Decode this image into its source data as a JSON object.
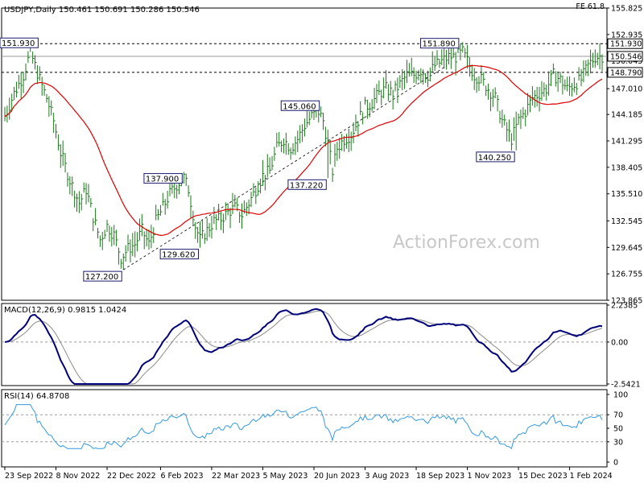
{
  "chart_data": {
    "type": "line",
    "symbol_header": "USDJPY,Daily  150.461 150.691 150.286 150.546",
    "watermark": "ActionForex.com",
    "fib_label": "FE 61.8",
    "x_labels": [
      "23 Sep 2022",
      "8 Nov 2022",
      "22 Dec 2022",
      "6 Feb 2023",
      "22 Mar 2023",
      "5 May 2023",
      "20 Jun 2023",
      "3 Aug 2023",
      "18 Sep 2023",
      "1 Nov 2023",
      "15 Dec 2023",
      "1 Feb 2024"
    ],
    "price_panel": {
      "y_ticks": [
        "155.825",
        "152.935",
        "150.045",
        "147.010",
        "144.185",
        "141.295",
        "138.405",
        "135.510",
        "132.545",
        "129.645",
        "126.755",
        "123.865"
      ],
      "ylim": [
        123.865,
        155.825
      ],
      "levels": [
        {
          "value": 151.93,
          "label": "151.930",
          "style": "dashed"
        },
        {
          "value": 148.79,
          "label": "148.790",
          "style": "dashed"
        },
        {
          "value": 150.546,
          "label": "150.546",
          "style": "solid"
        }
      ],
      "annotations": [
        {
          "label": "151.930",
          "index": 11,
          "value": 151.93,
          "side": "left"
        },
        {
          "label": "127.200",
          "index": 51,
          "value": 127.2,
          "side": "left"
        },
        {
          "label": "137.900",
          "index": 77,
          "value": 137.9,
          "side": "left"
        },
        {
          "label": "129.620",
          "index": 84,
          "value": 129.62,
          "side": "left"
        },
        {
          "label": "145.060",
          "index": 136,
          "value": 145.06,
          "side": "left"
        },
        {
          "label": "137.220",
          "index": 139,
          "value": 137.22,
          "side": "left"
        },
        {
          "label": "151.890",
          "index": 196,
          "value": 151.89,
          "side": "left"
        },
        {
          "label": "140.250",
          "index": 220,
          "value": 140.25,
          "side": "left"
        }
      ],
      "close_anchors": [
        [
          0,
          144.0
        ],
        [
          4,
          146.5
        ],
        [
          8,
          148.5
        ],
        [
          11,
          151.0
        ],
        [
          15,
          148.0
        ],
        [
          18,
          146.0
        ],
        [
          21,
          143.5
        ],
        [
          24,
          140.0
        ],
        [
          28,
          137.0
        ],
        [
          32,
          134.5
        ],
        [
          35,
          136.0
        ],
        [
          38,
          133.0
        ],
        [
          41,
          130.5
        ],
        [
          44,
          132.0
        ],
        [
          47,
          131.0
        ],
        [
          50,
          128.5
        ],
        [
          53,
          129.5
        ],
        [
          56,
          130.0
        ],
        [
          59,
          131.5
        ],
        [
          62,
          130.0
        ],
        [
          65,
          132.5
        ],
        [
          68,
          134.0
        ],
        [
          71,
          135.5
        ],
        [
          74,
          136.5
        ],
        [
          77,
          137.3
        ],
        [
          79,
          136.0
        ],
        [
          82,
          132.0
        ],
        [
          84,
          130.5
        ],
        [
          87,
          131.5
        ],
        [
          90,
          132.5
        ],
        [
          93,
          132.8
        ],
        [
          96,
          133.5
        ],
        [
          99,
          134.0
        ],
        [
          102,
          133.2
        ],
        [
          105,
          134.5
        ],
        [
          108,
          136.0
        ],
        [
          111,
          137.5
        ],
        [
          114,
          138.0
        ],
        [
          117,
          140.5
        ],
        [
          120,
          141.5
        ],
        [
          123,
          140.5
        ],
        [
          126,
          141.5
        ],
        [
          129,
          143.0
        ],
        [
          132,
          144.0
        ],
        [
          135,
          144.5
        ],
        [
          137,
          143.5
        ],
        [
          139,
          141.0
        ],
        [
          141,
          138.0
        ],
        [
          143,
          140.5
        ],
        [
          146,
          141.5
        ],
        [
          149,
          142.0
        ],
        [
          152,
          143.5
        ],
        [
          155,
          145.0
        ],
        [
          158,
          145.5
        ],
        [
          161,
          146.5
        ],
        [
          164,
          147.0
        ],
        [
          167,
          146.5
        ],
        [
          170,
          147.5
        ],
        [
          173,
          148.5
        ],
        [
          176,
          148.5
        ],
        [
          179,
          149.0
        ],
        [
          182,
          148.5
        ],
        [
          185,
          149.5
        ],
        [
          188,
          150.0
        ],
        [
          191,
          150.5
        ],
        [
          194,
          150.5
        ],
        [
          197,
          151.0
        ],
        [
          199,
          150.0
        ],
        [
          202,
          148.5
        ],
        [
          205,
          148.0
        ],
        [
          208,
          147.0
        ],
        [
          211,
          146.0
        ],
        [
          214,
          143.5
        ],
        [
          216,
          142.5
        ],
        [
          218,
          141.5
        ],
        [
          221,
          143.5
        ],
        [
          224,
          144.5
        ],
        [
          227,
          146.0
        ],
        [
          230,
          146.5
        ],
        [
          233,
          147.0
        ],
        [
          236,
          148.5
        ],
        [
          239,
          148.0
        ],
        [
          242,
          147.0
        ],
        [
          245,
          147.5
        ],
        [
          248,
          148.0
        ],
        [
          251,
          149.5
        ],
        [
          254,
          150.5
        ],
        [
          257,
          150.6
        ]
      ]
    },
    "macd_panel": {
      "label": "MACD(12,26,9) 0.9815 1.0424",
      "macd_value": 0.9815,
      "signal_value": 1.0424,
      "y_ticks": [
        "2.2385",
        "0.00",
        "-2.5421"
      ],
      "ylim": [
        -2.5421,
        2.2385
      ]
    },
    "rsi_panel": {
      "label": "RSI(14) 64.8708",
      "rsi_value": 64.8708,
      "y_ticks": [
        "100",
        "70",
        "50",
        "30",
        "0"
      ],
      "ylim": [
        0,
        100
      ],
      "levels": [
        70,
        30
      ]
    },
    "colors": {
      "price_bars": "#1a7a1a",
      "ma": "#e00000",
      "trend": "#000000",
      "macd": "#00007a",
      "signal": "#8a8a8a",
      "rsi": "#3399e0",
      "grid": "#888888"
    }
  }
}
